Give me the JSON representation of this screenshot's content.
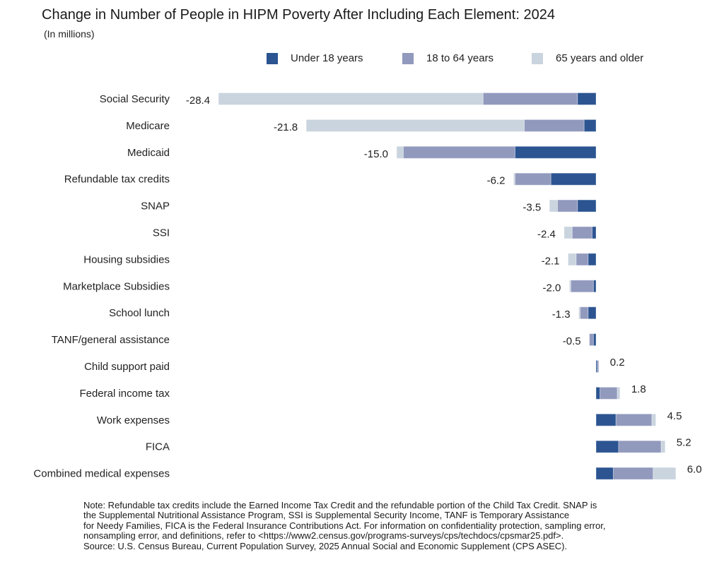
{
  "title": "Change in Number of People in HIPM Poverty After Including Each Element: 2024",
  "subtitle": "(In millions)",
  "colors": {
    "under_18": "#2b5491",
    "age_18_64": "#9199bd",
    "age_65_plus": "#c9d4de"
  },
  "legend": [
    {
      "key": "under_18",
      "label": "Under 18 years"
    },
    {
      "key": "age_18_64",
      "label": "18 to 64 years"
    },
    {
      "key": "age_65_plus",
      "label": "65 years and older"
    }
  ],
  "chart_data": {
    "type": "bar",
    "orientation": "horizontal",
    "stacked": true,
    "title": "Change in Number of People in HIPM Poverty After Including Each Element: 2024",
    "subtitle": "(In millions)",
    "xlabel": "",
    "ylabel": "",
    "grid": false,
    "legend_position": "top-right",
    "categories": [
      "Social Security",
      "Medicare",
      "Medicaid",
      "Refundable tax credits",
      "SNAP",
      "SSI",
      "Housing subsidies",
      "Marketplace Subsidies",
      "School lunch",
      "TANF/general assistance",
      "Child support paid",
      "Federal income tax",
      "Work expenses",
      "FICA",
      "Combined medical expenses"
    ],
    "totals": [
      -28.4,
      -21.8,
      -15.0,
      -6.2,
      -3.5,
      -2.4,
      -2.1,
      -2.0,
      -1.3,
      -0.5,
      0.2,
      1.8,
      4.5,
      5.2,
      6.0
    ],
    "total_labels": [
      "-28.4",
      "-21.8",
      "-15.0",
      "-6.2",
      "-3.5",
      "-2.4",
      "-2.1",
      "-2.0",
      "-1.3",
      "-0.5",
      "0.2",
      "1.8",
      "4.5",
      "5.2",
      "6.0"
    ],
    "series": [
      {
        "name": "Under 18 years",
        "key": "under_18",
        "values": [
          -1.4,
          -0.9,
          -6.1,
          -3.4,
          -1.4,
          -0.3,
          -0.6,
          -0.2,
          -0.6,
          -0.2,
          0.1,
          0.3,
          1.5,
          1.7,
          1.3
        ]
      },
      {
        "name": "18 to 64 years",
        "key": "age_18_64",
        "values": [
          -7.1,
          -4.5,
          -8.4,
          -2.7,
          -1.5,
          -1.5,
          -0.9,
          -1.7,
          -0.6,
          -0.3,
          0.1,
          1.3,
          2.7,
          3.2,
          3.0
        ]
      },
      {
        "name": "65 years and older",
        "key": "age_65_plus",
        "values": [
          -19.9,
          -16.4,
          -0.5,
          -0.1,
          -0.6,
          -0.6,
          -0.6,
          -0.1,
          -0.1,
          0.0,
          0.0,
          0.2,
          0.3,
          0.3,
          1.7
        ]
      }
    ],
    "xlim": [
      -28.4,
      6.0
    ]
  },
  "note_lines": [
    "Note: Refundable tax credits include the Earned Income Tax Credit and the refundable portion of the Child Tax Credit. SNAP is",
    "the Supplemental Nutritional Assistance Program, SSI is Supplemental Security Income, TANF is Temporary Assistance",
    "for Needy Families, FICA is the Federal Insurance Contributions Act. For information on confidentiality protection, sampling error,",
    "nonsampling error, and definitions, refer to <https://www2.census.gov/programs-surveys/cps/techdocs/cpsmar25.pdf>.",
    "Source: U.S. Census Bureau, Current Population Survey, 2025 Annual Social and Economic Supplement (CPS ASEC)."
  ]
}
